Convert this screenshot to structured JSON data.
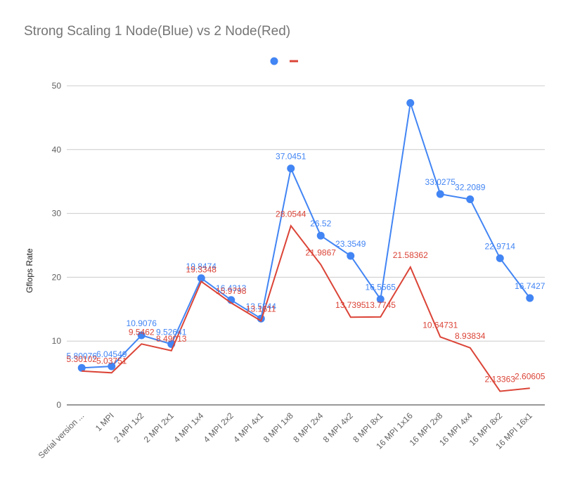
{
  "chart_data": {
    "type": "line",
    "title": "Strong Scaling 1 Node(Blue) vs 2 Node(Red)",
    "xlabel": "",
    "ylabel": "Gflops Rate",
    "ylim": [
      0,
      50
    ],
    "yticks": [
      0,
      10,
      20,
      30,
      40,
      50
    ],
    "grid": true,
    "legend_position": "top",
    "categories": [
      "Serial version ...",
      "1 MPI",
      "2 MPI 1x2",
      "2 MPI 2x1",
      "4 MPI 1x4",
      "4 MPI 2x2",
      "4 MPI 4x1",
      "8 MPI 1x8",
      "8 MPI 2x4",
      "8 MPI 4x2",
      "8 MPI 8x1",
      "16 MPI 1x16",
      "16 MPI 2x8",
      "16 MPI 4x4",
      "16 MPI 8x2",
      "16 MPI 16x1"
    ],
    "series": [
      {
        "color": "#4285f4",
        "marker": "circle",
        "values": [
          5.80076,
          6.04549,
          10.9076,
          9.52641,
          19.8474,
          16.4313,
          13.5244,
          37.0451,
          26.52,
          23.3549,
          16.5565,
          47.3,
          33.0275,
          32.2089,
          22.9714,
          16.7427
        ],
        "labels": [
          "5.80076",
          "6.04549",
          "10.9076",
          "9.52641",
          "19.8474",
          "16.4313",
          "13.5244",
          "37.0451",
          "26.52",
          "23.3549",
          "16.5565",
          "",
          "33.0275",
          "32.2089",
          "22.9714",
          "16.7427"
        ]
      },
      {
        "color": "#db4437",
        "marker": "none",
        "values": [
          5.30102,
          5.03751,
          9.5462,
          8.49013,
          19.3348,
          15.9798,
          13.1611,
          28.0544,
          21.9867,
          13.7395,
          13.7745,
          21.58362,
          10.64731,
          8.93834,
          2.13363,
          2.60605
        ],
        "labels": [
          "5.30102",
          "5.03751",
          "9.5462",
          "8.49013",
          "19.3348",
          "15.9798",
          "13.1611",
          "28.0544",
          "21.9867",
          "13.7395",
          "13.7745",
          "21.58362",
          "10.64731",
          "8.93834",
          "2.13363",
          "2.60605"
        ]
      }
    ]
  }
}
